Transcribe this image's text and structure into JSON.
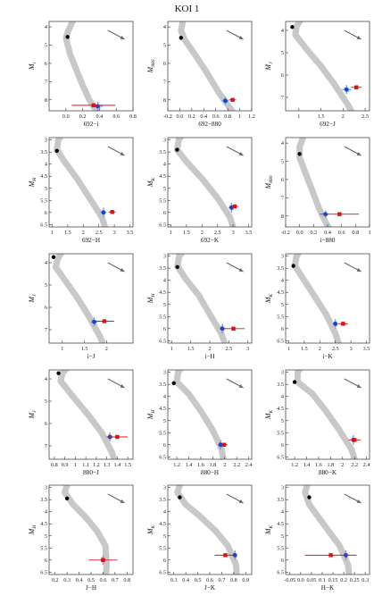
{
  "title": "KOI 1",
  "colors": {
    "track": "#c8c8c8",
    "black_point": "#000000",
    "blue_point": "#1f3fd0",
    "blue_bars": "#6aa6e8",
    "red_point": "#e01010",
    "arrow": "#666666",
    "axes": "#333333"
  },
  "chart_data": [
    {
      "type": "scatter",
      "xlabel": "692−i",
      "ylabel_base": "M",
      "ylabel_sub": "i",
      "xlim": [
        -0.2,
        0.8
      ],
      "xticks": [
        0.0,
        0.2,
        0.4,
        0.6,
        0.8
      ],
      "ylim": [
        8.6,
        3.7
      ],
      "yticks": [
        4,
        5,
        6,
        7,
        8
      ],
      "track": [
        [
          0.45,
          9.2
        ],
        [
          0.35,
          8.5
        ],
        [
          0.28,
          8.0
        ],
        [
          0.2,
          7.2
        ],
        [
          0.12,
          6.3
        ],
        [
          0.05,
          5.5
        ],
        [
          0.0,
          4.6
        ],
        [
          0.03,
          4.2
        ],
        [
          0.08,
          3.7
        ]
      ],
      "black": [
        0.02,
        4.55
      ],
      "blue": [
        0.38,
        8.35
      ],
      "blue_xerr": 0.06,
      "blue_yerr": 0.25,
      "red": [
        0.33,
        8.3
      ],
      "red_xerr": 0.26
    },
    {
      "type": "scatter",
      "xlabel": "692−880",
      "ylabel_base": "M",
      "ylabel_sub": "880",
      "xlim": [
        -0.2,
        1.2
      ],
      "xticks": [
        -0.2,
        0.0,
        0.2,
        0.4,
        0.6,
        0.8,
        1.0,
        1.2
      ],
      "ylim": [
        8.6,
        3.7
      ],
      "yticks": [
        4,
        5,
        6,
        7,
        8
      ],
      "track": [
        [
          1.0,
          9.2
        ],
        [
          0.85,
          8.5
        ],
        [
          0.65,
          7.6
        ],
        [
          0.45,
          6.5
        ],
        [
          0.25,
          5.5
        ],
        [
          0.08,
          4.7
        ],
        [
          0.02,
          4.2
        ],
        [
          0.05,
          3.7
        ]
      ],
      "black": [
        0.02,
        4.6
      ],
      "blue": [
        0.76,
        8.05
      ],
      "blue_xerr": 0.06,
      "blue_yerr": 0.22,
      "red": [
        0.88,
        8.0
      ],
      "red_xerr": 0.06
    },
    {
      "type": "scatter",
      "xlabel": "692−J",
      "ylabel_base": "M",
      "ylabel_sub": "J",
      "xlim": [
        0.7,
        2.6
      ],
      "xticks": [
        1.0,
        1.5,
        2.0,
        2.5
      ],
      "ylim": [
        7.6,
        3.6
      ],
      "yticks": [
        4,
        5,
        6,
        7
      ],
      "track": [
        [
          2.3,
          8.0
        ],
        [
          2.1,
          7.3
        ],
        [
          1.8,
          6.4
        ],
        [
          1.5,
          5.6
        ],
        [
          1.2,
          4.9
        ],
        [
          0.92,
          4.2
        ],
        [
          0.95,
          3.8
        ],
        [
          1.05,
          3.5
        ]
      ],
      "black": [
        0.85,
        3.85
      ],
      "blue": [
        2.08,
        6.65
      ],
      "blue_xerr": 0.1,
      "blue_yerr": 0.2,
      "red": [
        2.3,
        6.55
      ],
      "red_xerr": 0.12
    },
    {
      "type": "scatter",
      "xlabel": "692−H",
      "ylabel_base": "M",
      "ylabel_sub": "H",
      "xlim": [
        0.9,
        3.6
      ],
      "xticks": [
        1.0,
        1.5,
        2.0,
        2.5,
        3.0,
        3.5
      ],
      "ylim": [
        6.6,
        2.9
      ],
      "yticks": [
        3.0,
        3.5,
        4.0,
        4.5,
        5.0,
        5.5,
        6.0,
        6.5
      ],
      "track": [
        [
          2.8,
          7.0
        ],
        [
          2.6,
          6.2
        ],
        [
          2.2,
          5.4
        ],
        [
          1.8,
          4.6
        ],
        [
          1.4,
          3.9
        ],
        [
          1.15,
          3.4
        ],
        [
          1.2,
          3.0
        ],
        [
          1.3,
          2.8
        ]
      ],
      "black": [
        1.15,
        3.45
      ],
      "blue": [
        2.65,
        6.0
      ],
      "blue_xerr": 0.1,
      "blue_yerr": 0.2,
      "red": [
        2.93,
        5.98
      ],
      "red_xerr": 0.12
    },
    {
      "type": "scatter",
      "xlabel": "692−K",
      "ylabel_base": "M",
      "ylabel_sub": "K",
      "xlim": [
        0.9,
        3.6
      ],
      "xticks": [
        1.0,
        1.5,
        2.0,
        2.5,
        3.0,
        3.5
      ],
      "ylim": [
        6.6,
        2.9
      ],
      "yticks": [
        3.0,
        3.5,
        4.0,
        4.5,
        5.0,
        5.5,
        6.0,
        6.5
      ],
      "track": [
        [
          3.1,
          7.0
        ],
        [
          2.9,
          6.2
        ],
        [
          2.5,
          5.4
        ],
        [
          2.0,
          4.6
        ],
        [
          1.5,
          3.9
        ],
        [
          1.2,
          3.4
        ],
        [
          1.25,
          3.0
        ],
        [
          1.35,
          2.8
        ]
      ],
      "black": [
        1.2,
        3.4
      ],
      "blue": [
        2.95,
        5.8
      ],
      "blue_xerr": 0.1,
      "blue_yerr": 0.2,
      "red": [
        3.05,
        5.75
      ],
      "red_xerr": 0.12
    },
    {
      "type": "scatter",
      "xlabel": "i−880",
      "ylabel_base": "M",
      "ylabel_sub": "880",
      "xlim": [
        -0.2,
        1.0
      ],
      "xticks": [
        -0.2,
        0.0,
        0.2,
        0.4,
        0.6,
        0.8,
        1.0
      ],
      "ylim": [
        8.6,
        3.7
      ],
      "yticks": [
        4,
        5,
        6,
        7,
        8
      ],
      "track": [
        [
          0.5,
          9.2
        ],
        [
          0.38,
          8.4
        ],
        [
          0.28,
          7.6
        ],
        [
          0.18,
          6.6
        ],
        [
          0.08,
          5.6
        ],
        [
          0.0,
          4.8
        ],
        [
          0.0,
          4.2
        ],
        [
          0.05,
          3.7
        ]
      ],
      "black": [
        0.0,
        4.6
      ],
      "blue": [
        0.37,
        7.9
      ],
      "blue_xerr": 0.04,
      "blue_yerr": 0.2,
      "red": [
        0.57,
        7.9
      ],
      "red_xerr": 0.28
    },
    {
      "type": "scatter",
      "xlabel": "i−J",
      "ylabel_base": "M",
      "ylabel_sub": "J",
      "xlim": [
        0.7,
        2.6
      ],
      "xticks": [
        1.0,
        1.5,
        2.0
      ],
      "ylim": [
        7.6,
        3.6
      ],
      "yticks": [
        4,
        5,
        6,
        7
      ],
      "track": [
        [
          2.0,
          8.0
        ],
        [
          1.85,
          7.3
        ],
        [
          1.6,
          6.4
        ],
        [
          1.35,
          5.6
        ],
        [
          1.1,
          4.9
        ],
        [
          0.85,
          4.2
        ],
        [
          0.9,
          3.8
        ],
        [
          1.0,
          3.5
        ]
      ],
      "black": [
        0.8,
        3.75
      ],
      "blue": [
        1.72,
        6.65
      ],
      "blue_xerr": 0.08,
      "blue_yerr": 0.2,
      "red": [
        1.95,
        6.62
      ],
      "red_xerr": 0.22
    },
    {
      "type": "scatter",
      "xlabel": "i−H",
      "ylabel_base": "M",
      "ylabel_sub": "H",
      "xlim": [
        0.9,
        3.1
      ],
      "xticks": [
        1.0,
        1.5,
        2.0,
        2.5,
        3.0
      ],
      "ylim": [
        6.6,
        2.9
      ],
      "yticks": [
        3.0,
        3.5,
        4.0,
        4.5,
        5.0,
        5.5,
        6.0,
        6.5
      ],
      "track": [
        [
          2.5,
          7.0
        ],
        [
          2.3,
          6.2
        ],
        [
          2.0,
          5.4
        ],
        [
          1.7,
          4.6
        ],
        [
          1.35,
          3.9
        ],
        [
          1.15,
          3.4
        ],
        [
          1.2,
          3.0
        ],
        [
          1.3,
          2.8
        ]
      ],
      "black": [
        1.15,
        3.45
      ],
      "blue": [
        2.33,
        6.0
      ],
      "blue_xerr": 0.08,
      "blue_yerr": 0.2,
      "red": [
        2.62,
        6.0
      ],
      "red_xerr": 0.3
    },
    {
      "type": "scatter",
      "xlabel": "i−K",
      "ylabel_base": "M",
      "ylabel_sub": "K",
      "xlim": [
        0.9,
        3.6
      ],
      "xticks": [
        1.0,
        1.5,
        2.0,
        2.5,
        3.0,
        3.5
      ],
      "ylim": [
        6.6,
        2.9
      ],
      "yticks": [
        3.0,
        3.5,
        4.0,
        4.5,
        5.0,
        5.5,
        6.0,
        6.5
      ],
      "track": [
        [
          2.7,
          7.0
        ],
        [
          2.5,
          6.2
        ],
        [
          2.2,
          5.4
        ],
        [
          1.8,
          4.6
        ],
        [
          1.45,
          3.9
        ],
        [
          1.2,
          3.4
        ],
        [
          1.25,
          3.0
        ],
        [
          1.35,
          2.8
        ]
      ],
      "black": [
        1.15,
        3.4
      ],
      "blue": [
        2.5,
        5.8
      ],
      "blue_xerr": 0.08,
      "blue_yerr": 0.2,
      "red": [
        2.75,
        5.8
      ],
      "red_xerr": 0.15
    },
    {
      "type": "scatter",
      "xlabel": "880−J",
      "ylabel_base": "M",
      "ylabel_sub": "J",
      "xlim": [
        0.75,
        1.55
      ],
      "xticks": [
        0.8,
        0.9,
        1.0,
        1.1,
        1.2,
        1.3,
        1.4,
        1.5
      ],
      "ylim": [
        7.6,
        3.6
      ],
      "yticks": [
        4,
        5,
        6,
        7
      ],
      "track": [
        [
          1.4,
          8.0
        ],
        [
          1.35,
          7.3
        ],
        [
          1.25,
          6.4
        ],
        [
          1.12,
          5.6
        ],
        [
          0.98,
          4.8
        ],
        [
          0.86,
          4.1
        ],
        [
          0.88,
          3.7
        ],
        [
          0.93,
          3.5
        ]
      ],
      "black": [
        0.84,
        3.75
      ],
      "blue": [
        1.33,
        6.6
      ],
      "blue_xerr": 0.03,
      "blue_yerr": 0.2,
      "red": [
        1.4,
        6.6
      ],
      "red_xerr": 0.1
    },
    {
      "type": "scatter",
      "xlabel": "880−H",
      "ylabel_base": "M",
      "ylabel_sub": "H",
      "xlim": [
        1.05,
        2.45
      ],
      "xticks": [
        1.2,
        1.4,
        1.6,
        1.8,
        2.0,
        2.2,
        2.4
      ],
      "ylim": [
        6.6,
        2.9
      ],
      "yticks": [
        3.0,
        3.5,
        4.0,
        4.5,
        5.0,
        5.5,
        6.0,
        6.5
      ],
      "track": [
        [
          2.0,
          7.0
        ],
        [
          1.95,
          6.2
        ],
        [
          1.8,
          5.4
        ],
        [
          1.6,
          4.6
        ],
        [
          1.4,
          3.9
        ],
        [
          1.2,
          3.4
        ],
        [
          1.22,
          3.0
        ],
        [
          1.28,
          2.8
        ]
      ],
      "black": [
        1.15,
        3.45
      ],
      "blue": [
        1.93,
        6.0
      ],
      "blue_xerr": 0.04,
      "blue_yerr": 0.2,
      "red": [
        1.99,
        6.0
      ],
      "red_xerr": 0.06
    },
    {
      "type": "scatter",
      "xlabel": "880−K",
      "ylabel_base": "M",
      "ylabel_sub": "K",
      "xlim": [
        1.05,
        2.45
      ],
      "xticks": [
        1.2,
        1.4,
        1.6,
        1.8,
        2.0,
        2.2,
        2.4
      ],
      "ylim": [
        6.6,
        2.9
      ],
      "yticks": [
        3.0,
        3.5,
        4.0,
        4.5,
        5.0,
        5.5,
        6.0,
        6.5
      ],
      "track": [
        [
          2.25,
          7.0
        ],
        [
          2.15,
          6.2
        ],
        [
          1.95,
          5.4
        ],
        [
          1.72,
          4.6
        ],
        [
          1.5,
          3.9
        ],
        [
          1.25,
          3.4
        ],
        [
          1.25,
          3.0
        ],
        [
          1.3,
          2.8
        ]
      ],
      "black": [
        1.2,
        3.4
      ],
      "blue": [
        2.18,
        5.8
      ],
      "blue_xerr": 0.04,
      "blue_yerr": 0.2,
      "red": [
        2.2,
        5.8
      ],
      "red_xerr": 0.1
    },
    {
      "type": "scatter",
      "xlabel": "J−H",
      "ylabel_base": "M",
      "ylabel_sub": "H",
      "xlim": [
        0.15,
        0.85
      ],
      "xticks": [
        0.2,
        0.3,
        0.4,
        0.5,
        0.6,
        0.7,
        0.8
      ],
      "ylim": [
        6.6,
        2.9
      ],
      "yticks": [
        3.0,
        3.5,
        4.0,
        4.5,
        5.0,
        5.5,
        6.0,
        6.5
      ],
      "track": [
        [
          0.62,
          7.0
        ],
        [
          0.63,
          6.2
        ],
        [
          0.62,
          5.4
        ],
        [
          0.55,
          4.8
        ],
        [
          0.45,
          4.2
        ],
        [
          0.35,
          3.7
        ],
        [
          0.28,
          3.2
        ],
        [
          0.3,
          2.9
        ]
      ],
      "black": [
        0.3,
        3.45
      ],
      "blue": [
        0.6,
        6.0
      ],
      "blue_xerr": 0.02,
      "blue_yerr": 0.2,
      "red": [
        0.6,
        6.0
      ],
      "red_xerr": 0.12
    },
    {
      "type": "scatter",
      "xlabel": "J−K",
      "ylabel_base": "M",
      "ylabel_sub": "K",
      "xlim": [
        0.25,
        0.95
      ],
      "xticks": [
        0.3,
        0.4,
        0.5,
        0.6,
        0.7,
        0.8,
        0.9
      ],
      "ylim": [
        6.6,
        2.9
      ],
      "yticks": [
        3.0,
        3.5,
        4.0,
        4.5,
        5.0,
        5.5,
        6.0,
        6.5
      ],
      "track": [
        [
          0.83,
          7.0
        ],
        [
          0.82,
          6.2
        ],
        [
          0.75,
          5.4
        ],
        [
          0.65,
          4.8
        ],
        [
          0.52,
          4.2
        ],
        [
          0.4,
          3.7
        ],
        [
          0.33,
          3.2
        ],
        [
          0.35,
          2.9
        ]
      ],
      "black": [
        0.35,
        3.4
      ],
      "blue": [
        0.81,
        5.8
      ],
      "blue_xerr": 0.02,
      "blue_yerr": 0.2,
      "red": [
        0.73,
        5.8
      ],
      "red_xerr": 0.09
    },
    {
      "type": "scatter",
      "xlabel": "H−K",
      "ylabel_base": "M",
      "ylabel_sub": "K",
      "xlim": [
        -0.07,
        0.32
      ],
      "xticks": [
        -0.05,
        0.0,
        0.05,
        0.1,
        0.15,
        0.2,
        0.25,
        0.3
      ],
      "ylim": [
        6.6,
        2.9
      ],
      "yticks": [
        3.0,
        3.5,
        4.0,
        4.5,
        5.0,
        5.5,
        6.0,
        6.5
      ],
      "track": [
        [
          0.23,
          7.0
        ],
        [
          0.22,
          6.2
        ],
        [
          0.18,
          5.4
        ],
        [
          0.13,
          4.8
        ],
        [
          0.08,
          4.2
        ],
        [
          0.04,
          3.7
        ],
        [
          0.02,
          3.2
        ],
        [
          0.03,
          2.9
        ]
      ],
      "black": [
        0.04,
        3.4
      ],
      "blue": [
        0.21,
        5.8
      ],
      "blue_xerr": 0.01,
      "blue_yerr": 0.2,
      "red": [
        0.14,
        5.8
      ],
      "red_xerr": 0.12
    }
  ]
}
